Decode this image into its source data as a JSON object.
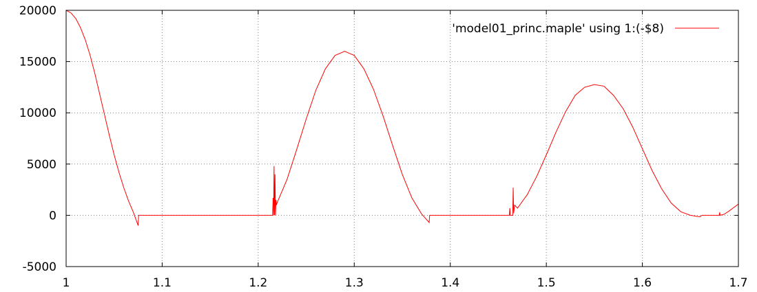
{
  "chart_data": {
    "type": "line",
    "title": "",
    "xlabel": "",
    "ylabel": "",
    "xlim": [
      1.0,
      1.7
    ],
    "ylim": [
      -5000,
      20000
    ],
    "x_ticks": [
      1.0,
      1.1,
      1.2,
      1.3,
      1.4,
      1.5,
      1.6,
      1.7
    ],
    "x_tick_labels": [
      "1",
      "1.1",
      "1.2",
      "1.3",
      "1.4",
      "1.5",
      "1.6",
      "1.7"
    ],
    "y_ticks": [
      -5000,
      0,
      5000,
      10000,
      15000,
      20000
    ],
    "y_tick_labels": [
      "-5000",
      "0",
      "5000",
      "10000",
      "15000",
      "20000"
    ],
    "grid": true,
    "legend_position": "top-right",
    "series": [
      {
        "name": "'model01_princ.maple' using 1:(-$8)",
        "color": "#ff0000",
        "points": [
          [
            1.0,
            20000
          ],
          [
            1.005,
            19750
          ],
          [
            1.01,
            19200
          ],
          [
            1.015,
            18300
          ],
          [
            1.02,
            17100
          ],
          [
            1.025,
            15600
          ],
          [
            1.03,
            13800
          ],
          [
            1.035,
            11800
          ],
          [
            1.04,
            9800
          ],
          [
            1.045,
            7800
          ],
          [
            1.05,
            5900
          ],
          [
            1.055,
            4200
          ],
          [
            1.06,
            2700
          ],
          [
            1.065,
            1400
          ],
          [
            1.07,
            300
          ],
          [
            1.075,
            -1000
          ],
          [
            1.0755,
            0
          ],
          [
            1.1,
            0
          ],
          [
            1.2,
            0
          ],
          [
            1.214,
            0
          ],
          [
            1.215,
            0
          ],
          [
            1.2155,
            1700
          ],
          [
            1.216,
            0
          ],
          [
            1.2165,
            4800
          ],
          [
            1.217,
            0
          ],
          [
            1.2175,
            4000
          ],
          [
            1.218,
            0
          ],
          [
            1.2185,
            1500
          ],
          [
            1.219,
            1000
          ],
          [
            1.22,
            1300
          ],
          [
            1.23,
            3500
          ],
          [
            1.24,
            6400
          ],
          [
            1.25,
            9400
          ],
          [
            1.26,
            12200
          ],
          [
            1.27,
            14300
          ],
          [
            1.28,
            15600
          ],
          [
            1.29,
            16000
          ],
          [
            1.3,
            15600
          ],
          [
            1.31,
            14300
          ],
          [
            1.32,
            12300
          ],
          [
            1.33,
            9700
          ],
          [
            1.34,
            6800
          ],
          [
            1.35,
            4000
          ],
          [
            1.36,
            1700
          ],
          [
            1.37,
            150
          ],
          [
            1.378,
            -700
          ],
          [
            1.3785,
            0
          ],
          [
            1.4,
            0
          ],
          [
            1.46,
            0
          ],
          [
            1.4615,
            0
          ],
          [
            1.462,
            700
          ],
          [
            1.4625,
            0
          ],
          [
            1.465,
            0
          ],
          [
            1.4655,
            2700
          ],
          [
            1.466,
            200
          ],
          [
            1.467,
            1000
          ],
          [
            1.47,
            700
          ],
          [
            1.48,
            2000
          ],
          [
            1.49,
            3800
          ],
          [
            1.5,
            5900
          ],
          [
            1.51,
            8100
          ],
          [
            1.52,
            10100
          ],
          [
            1.53,
            11700
          ],
          [
            1.54,
            12500
          ],
          [
            1.55,
            12750
          ],
          [
            1.56,
            12600
          ],
          [
            1.57,
            11700
          ],
          [
            1.58,
            10400
          ],
          [
            1.59,
            8600
          ],
          [
            1.6,
            6500
          ],
          [
            1.61,
            4400
          ],
          [
            1.62,
            2600
          ],
          [
            1.63,
            1200
          ],
          [
            1.64,
            350
          ],
          [
            1.65,
            0
          ],
          [
            1.66,
            -150
          ],
          [
            1.662,
            0
          ],
          [
            1.67,
            0
          ],
          [
            1.68,
            0
          ],
          [
            1.6805,
            300
          ],
          [
            1.681,
            0
          ],
          [
            1.685,
            100
          ],
          [
            1.69,
            400
          ],
          [
            1.7,
            1100
          ]
        ]
      }
    ]
  }
}
